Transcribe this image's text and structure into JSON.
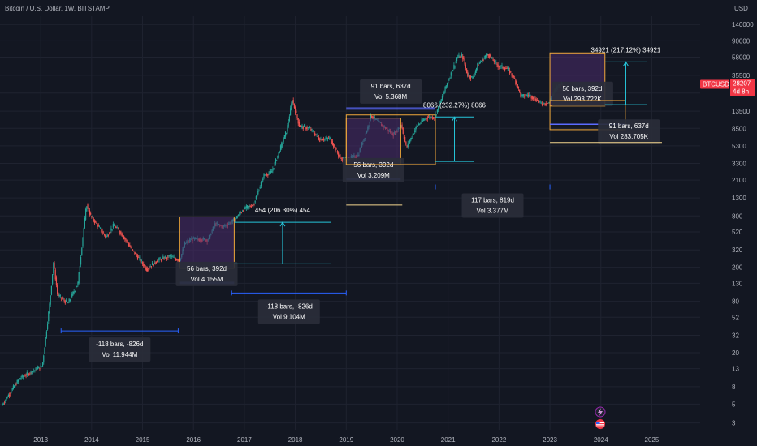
{
  "header": {
    "symbol_title": "Bitcoin / U.S. Dollar, 1W, BITSTAMP"
  },
  "price_axis": {
    "currency": "USD",
    "ticks": [
      140000,
      90000,
      58000,
      35500,
      22000,
      13500,
      8500,
      5300,
      3300,
      2100,
      1300,
      800,
      520,
      320,
      200,
      130,
      80,
      52,
      32,
      20,
      13,
      8,
      5,
      3
    ],
    "badge_symbol": "BTCUSD",
    "badge_price": "28207",
    "badge_countdown": "4d 8h"
  },
  "time_axis": {
    "ticks": [
      "2013",
      "2014",
      "2015",
      "2016",
      "2017",
      "2018",
      "2019",
      "2020",
      "2021",
      "2022",
      "2023",
      "2024",
      "2025"
    ]
  },
  "chart_data": {
    "type": "candlestick",
    "series_name": "BTCUSD",
    "interval": "1W",
    "y_scale": "log",
    "ylim": [
      2.5,
      175000
    ],
    "xlim": [
      2012.2,
      2025.95
    ],
    "price_path": [
      [
        2012.25,
        4.8
      ],
      [
        2012.6,
        10
      ],
      [
        2012.9,
        12.5
      ],
      [
        2013.05,
        14
      ],
      [
        2013.2,
        80
      ],
      [
        2013.27,
        230
      ],
      [
        2013.35,
        95
      ],
      [
        2013.55,
        75
      ],
      [
        2013.75,
        130
      ],
      [
        2013.85,
        480
      ],
      [
        2013.92,
        1100
      ],
      [
        2014.0,
        800
      ],
      [
        2014.15,
        600
      ],
      [
        2014.3,
        450
      ],
      [
        2014.45,
        620
      ],
      [
        2014.6,
        500
      ],
      [
        2014.8,
        330
      ],
      [
        2015.0,
        230
      ],
      [
        2015.1,
        190
      ],
      [
        2015.3,
        240
      ],
      [
        2015.55,
        270
      ],
      [
        2015.75,
        240
      ],
      [
        2015.85,
        380
      ],
      [
        2016.0,
        430
      ],
      [
        2016.3,
        420
      ],
      [
        2016.45,
        650
      ],
      [
        2016.6,
        600
      ],
      [
        2016.8,
        700
      ],
      [
        2017.0,
        960
      ],
      [
        2017.2,
        1100
      ],
      [
        2017.4,
        2400
      ],
      [
        2017.55,
        2600
      ],
      [
        2017.7,
        4500
      ],
      [
        2017.85,
        8000
      ],
      [
        2017.96,
        18500
      ],
      [
        2018.1,
        9000
      ],
      [
        2018.3,
        8500
      ],
      [
        2018.5,
        6300
      ],
      [
        2018.7,
        6500
      ],
      [
        2018.9,
        3800
      ],
      [
        2019.0,
        3600
      ],
      [
        2019.25,
        4100
      ],
      [
        2019.45,
        9000
      ],
      [
        2019.5,
        12000
      ],
      [
        2019.7,
        9500
      ],
      [
        2019.85,
        8000
      ],
      [
        2019.95,
        7200
      ],
      [
        2020.1,
        9500
      ],
      [
        2020.2,
        5000
      ],
      [
        2020.4,
        9000
      ],
      [
        2020.6,
        11500
      ],
      [
        2020.75,
        11500
      ],
      [
        2020.85,
        16000
      ],
      [
        2021.0,
        29000
      ],
      [
        2021.1,
        40000
      ],
      [
        2021.2,
        58000
      ],
      [
        2021.3,
        60000
      ],
      [
        2021.4,
        36000
      ],
      [
        2021.5,
        33000
      ],
      [
        2021.6,
        47000
      ],
      [
        2021.8,
        64000
      ],
      [
        2021.87,
        56000
      ],
      [
        2022.0,
        46000
      ],
      [
        2022.2,
        42000
      ],
      [
        2022.35,
        30000
      ],
      [
        2022.45,
        20000
      ],
      [
        2022.6,
        21000
      ],
      [
        2022.7,
        19500
      ],
      [
        2022.85,
        16500
      ],
      [
        2023.0,
        17000
      ],
      [
        2023.1,
        23000
      ],
      [
        2023.2,
        27500
      ],
      [
        2023.26,
        28207
      ]
    ],
    "reference_price": 28207,
    "annotations": {
      "boxes": [
        {
          "x0": 2015.72,
          "x1": 2016.8,
          "y0": 195,
          "y1": 780,
          "label": "56 bars, 392d",
          "vol": "Vol 4.155M"
        },
        {
          "x0": 2019.0,
          "x1": 2020.07,
          "y0": 3200,
          "y1": 11200,
          "label": "56 bars, 392d",
          "vol": "Vol 3.209M"
        },
        {
          "x0": 2019.0,
          "x1": 2020.75,
          "y0": 3200,
          "y1": 12200,
          "label": "91 bars, 637d",
          "vol": "Vol 5.368M"
        },
        {
          "x0": 2023.0,
          "x1": 2024.08,
          "y0": 15500,
          "y1": 65000,
          "label": "56 bars, 392d",
          "vol": "Vol 293.722K"
        },
        {
          "x0": 2023.0,
          "x1": 2024.48,
          "y0": 8200,
          "y1": 18000,
          "label": "91 bars, 637d",
          "vol": "Vol 283.705K"
        }
      ],
      "range_labels": [
        {
          "x0": 2013.4,
          "x1": 2015.7,
          "y": 36,
          "label": "-118 bars, -826d",
          "vol": "Vol 11.944M"
        },
        {
          "x0": 2016.75,
          "x1": 2019.0,
          "y": 100,
          "label": "-118 bars, -826d",
          "vol": "Vol 9.104M"
        },
        {
          "x0": 2020.75,
          "x1": 2023.0,
          "y": 1750,
          "label": "117 bars, 819d",
          "vol": "Vol 3.377M"
        }
      ],
      "price_ranges": [
        {
          "x0": 2016.8,
          "x1": 2018.7,
          "y0": 220,
          "y1": 674,
          "label": "454 (206.30%) 454"
        },
        {
          "x0": 2020.75,
          "x1": 2021.5,
          "y0": 3475,
          "y1": 11541,
          "label": "8066 (232.27%) 8066"
        },
        {
          "x0": 2024.08,
          "x1": 2024.9,
          "y0": 16074,
          "y1": 50995,
          "label": "34921 (217.12%) 34921"
        }
      ]
    }
  },
  "bottom_icons": [
    "lightning-icon",
    "us-flag-icon"
  ]
}
